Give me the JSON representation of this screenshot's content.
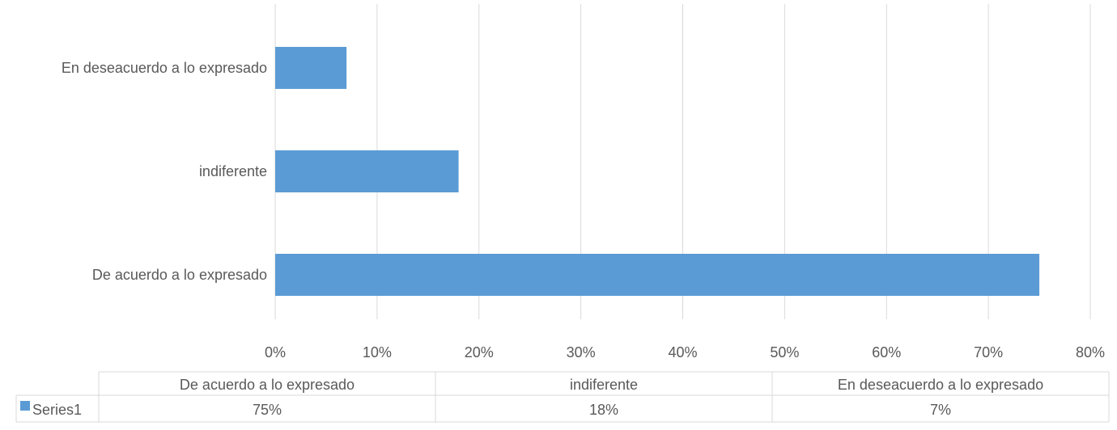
{
  "chart_data": {
    "type": "bar",
    "orientation": "horizontal",
    "categories": [
      "De acuerdo a lo expresado",
      "indiferente",
      "En deseacuerdo a lo expresado"
    ],
    "series": [
      {
        "name": "Series1",
        "values": [
          75,
          18,
          7
        ],
        "value_labels": [
          "75%",
          "18%",
          "7%"
        ],
        "color": "#5B9BD5"
      }
    ],
    "x_ticks": [
      "0%",
      "10%",
      "20%",
      "30%",
      "40%",
      "50%",
      "60%",
      "70%",
      "80%"
    ],
    "xlim": [
      0,
      80
    ],
    "grid": "vertical",
    "legend": "data-table"
  },
  "colors": {
    "bar": "#5B9BD5",
    "gridline": "#D9D9D9",
    "text": "#595959",
    "table_border": "#D9D9D9"
  }
}
